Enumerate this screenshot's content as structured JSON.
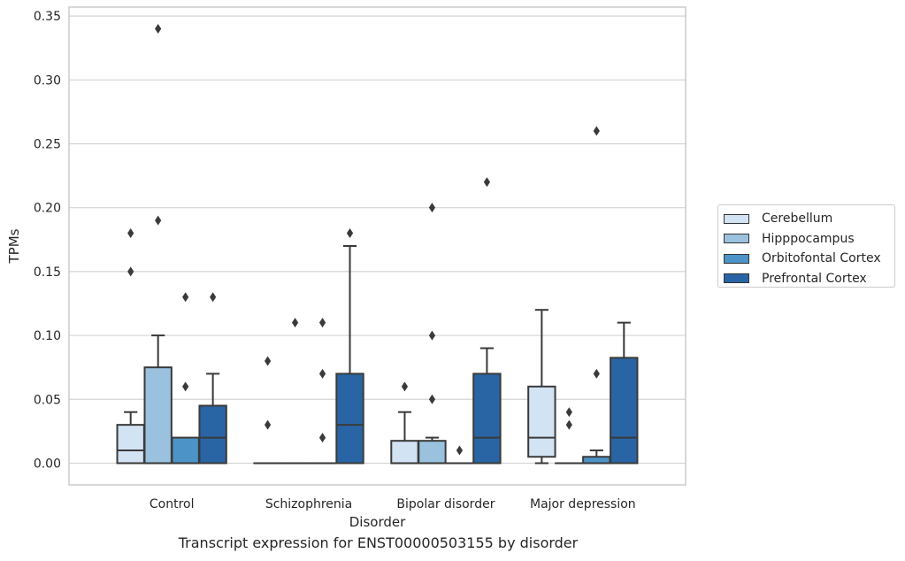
{
  "chart_data": {
    "type": "box",
    "caption": "Transcript expression for ENST00000503155 by disorder",
    "xlabel": "Disorder",
    "ylabel": "TPMs",
    "ylim": [
      -0.017,
      0.357
    ],
    "yticks": [
      "0.00",
      "0.05",
      "0.10",
      "0.15",
      "0.20",
      "0.25",
      "0.30",
      "0.35"
    ],
    "categories": [
      "Control",
      "Schizophrenia",
      "Bipolar disorder",
      "Major depression"
    ],
    "grid": "horizontal",
    "legend_position": "right",
    "series": [
      {
        "name": "Cerebellum",
        "color": "#d2e3f3",
        "boxes": [
          {
            "q1": 0.0,
            "median": 0.01,
            "q3": 0.03,
            "whislo": 0.0,
            "whishi": 0.04,
            "fliers": [
              0.15,
              0.18
            ]
          },
          {
            "q1": 0.0,
            "median": 0.0,
            "q3": 0.0,
            "whislo": 0.0,
            "whishi": 0.0,
            "fliers": [
              0.03,
              0.08
            ]
          },
          {
            "q1": 0.0,
            "median": 0.0,
            "q3": 0.0175,
            "whislo": 0.0,
            "whishi": 0.04,
            "fliers": [
              0.06
            ]
          },
          {
            "q1": 0.005,
            "median": 0.02,
            "q3": 0.06,
            "whislo": 0.0,
            "whishi": 0.12,
            "fliers": []
          }
        ]
      },
      {
        "name": "Hipppocampus",
        "color": "#9ac2de",
        "boxes": [
          {
            "q1": 0.0,
            "median": 0.0,
            "q3": 0.075,
            "whislo": 0.0,
            "whishi": 0.1,
            "fliers": [
              0.19,
              0.34
            ]
          },
          {
            "q1": 0.0,
            "median": 0.0,
            "q3": 0.0,
            "whislo": 0.0,
            "whishi": 0.0,
            "fliers": [
              0.11
            ]
          },
          {
            "q1": 0.0,
            "median": 0.0,
            "q3": 0.0175,
            "whislo": 0.0,
            "whishi": 0.02,
            "fliers": [
              0.05,
              0.1,
              0.2
            ]
          },
          {
            "q1": 0.0,
            "median": 0.0,
            "q3": 0.0,
            "whislo": 0.0,
            "whishi": 0.0,
            "fliers": [
              0.03,
              0.04
            ]
          }
        ]
      },
      {
        "name": "Orbitofontal Cortex",
        "color": "#4c94c7",
        "boxes": [
          {
            "q1": 0.0,
            "median": 0.0,
            "q3": 0.02,
            "whislo": 0.0,
            "whishi": 0.02,
            "fliers": [
              0.06,
              0.13
            ]
          },
          {
            "q1": 0.0,
            "median": 0.0,
            "q3": 0.0,
            "whislo": 0.0,
            "whishi": 0.0,
            "fliers": [
              0.02,
              0.07,
              0.11
            ]
          },
          {
            "q1": 0.0,
            "median": 0.0,
            "q3": 0.0,
            "whislo": 0.0,
            "whishi": 0.0,
            "fliers": [
              0.01
            ]
          },
          {
            "q1": 0.0,
            "median": 0.0,
            "q3": 0.005,
            "whislo": 0.0,
            "whishi": 0.01,
            "fliers": [
              0.07,
              0.26
            ]
          }
        ]
      },
      {
        "name": "Prefrontal Cortex",
        "color": "#2965a5",
        "boxes": [
          {
            "q1": 0.0,
            "median": 0.02,
            "q3": 0.045,
            "whislo": 0.0,
            "whishi": 0.07,
            "fliers": [
              0.13
            ]
          },
          {
            "q1": 0.0,
            "median": 0.03,
            "q3": 0.07,
            "whislo": 0.0,
            "whishi": 0.17,
            "fliers": [
              0.18
            ]
          },
          {
            "q1": 0.0,
            "median": 0.02,
            "q3": 0.07,
            "whislo": 0.0,
            "whishi": 0.09,
            "fliers": [
              0.22
            ]
          },
          {
            "q1": 0.0,
            "median": 0.02,
            "q3": 0.0825,
            "whislo": 0.0,
            "whishi": 0.11,
            "fliers": []
          }
        ]
      }
    ]
  }
}
